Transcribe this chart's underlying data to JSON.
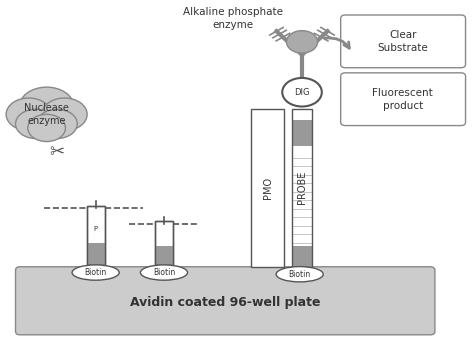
{
  "bg_color": "#ffffff",
  "plate_text": "Avidin coated 96-well plate",
  "gray_fill": "#999999",
  "light_gray": "#cccccc",
  "white_fill": "#ffffff",
  "label_clear_substrate": "Clear\nSubstrate",
  "label_fluorescent": "Fluorescent\nproduct",
  "label_alkaline": "Alkaline phosphate\nenzyme",
  "label_nuclease": "Nuclease\nenzyme",
  "label_dig": "DIG",
  "label_pmo": "PMO",
  "label_probe": "PROBE",
  "label_biotin": "Biotin"
}
